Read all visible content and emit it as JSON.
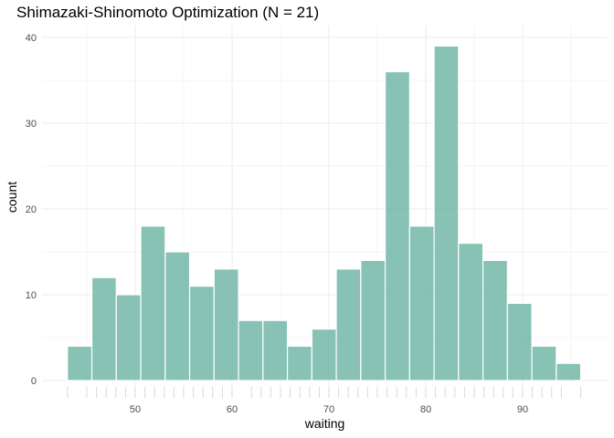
{
  "chart_data": {
    "type": "bar",
    "title": "Shimazaki-Shinomoto Optimization (N = 21)",
    "xlabel": "waiting",
    "ylabel": "count",
    "xlim": [
      43,
      96
    ],
    "ylim": [
      0,
      40
    ],
    "xticks": [
      "50",
      "60",
      "70",
      "80",
      "90"
    ],
    "yticks": [
      "0",
      "10",
      "20",
      "30",
      "40"
    ],
    "bin_start": 43,
    "bin_end": 96,
    "values": [
      4,
      12,
      10,
      18,
      15,
      11,
      13,
      7,
      7,
      4,
      6,
      13,
      14,
      36,
      18,
      39,
      16,
      14,
      9,
      4,
      2
    ],
    "rug": [
      43,
      45,
      46,
      47,
      48,
      49,
      50,
      51,
      52,
      53,
      54,
      55,
      56,
      57,
      58,
      59,
      60,
      62,
      63,
      64,
      65,
      66,
      67,
      68,
      69,
      70,
      71,
      72,
      73,
      74,
      75,
      76,
      77,
      78,
      79,
      80,
      81,
      82,
      83,
      84,
      85,
      86,
      87,
      88,
      89,
      90,
      91,
      92,
      93,
      94,
      96
    ],
    "grid": true,
    "bar_color": "#69b3a2"
  }
}
